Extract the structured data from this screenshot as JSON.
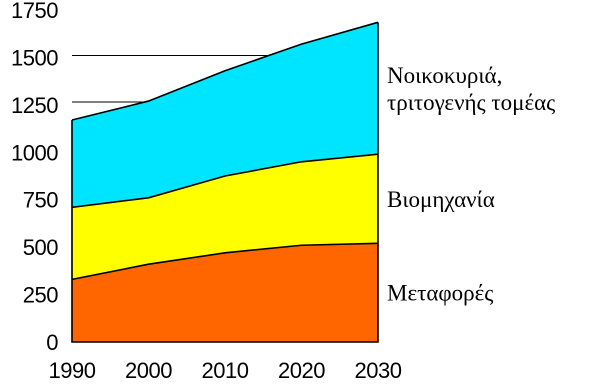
{
  "chart_data": {
    "type": "area",
    "stacked": true,
    "x": [
      1990,
      2000,
      2010,
      2020,
      2030
    ],
    "x_tick_labels": [
      "1990",
      "2000",
      "2010",
      "2020",
      "2030"
    ],
    "y_tick_labels": [
      "0",
      "250",
      "500",
      "750",
      "1000",
      "1250",
      "1500",
      "1750"
    ],
    "ylim": [
      0,
      1750
    ],
    "xlim": [
      1990,
      2030
    ],
    "grid": false,
    "series": [
      {
        "name": "Μεταφορές",
        "color": "#FF6600",
        "values": [
          330,
          410,
          470,
          510,
          520
        ]
      },
      {
        "name": "Βιομηχανία",
        "color": "#FFFF00",
        "values": [
          380,
          350,
          405,
          440,
          470
        ]
      },
      {
        "name": "Νοικοκυριά, τριτογενής τομέας",
        "name_lines": [
          "Νοικοκυριά,",
          "τριτογενής τομέας"
        ],
        "color": "#00E5FF",
        "values": [
          460,
          510,
          555,
          620,
          695
        ]
      }
    ],
    "reference_lines": [
      1265,
      1510
    ],
    "title": "",
    "xlabel": "",
    "ylabel": ""
  }
}
